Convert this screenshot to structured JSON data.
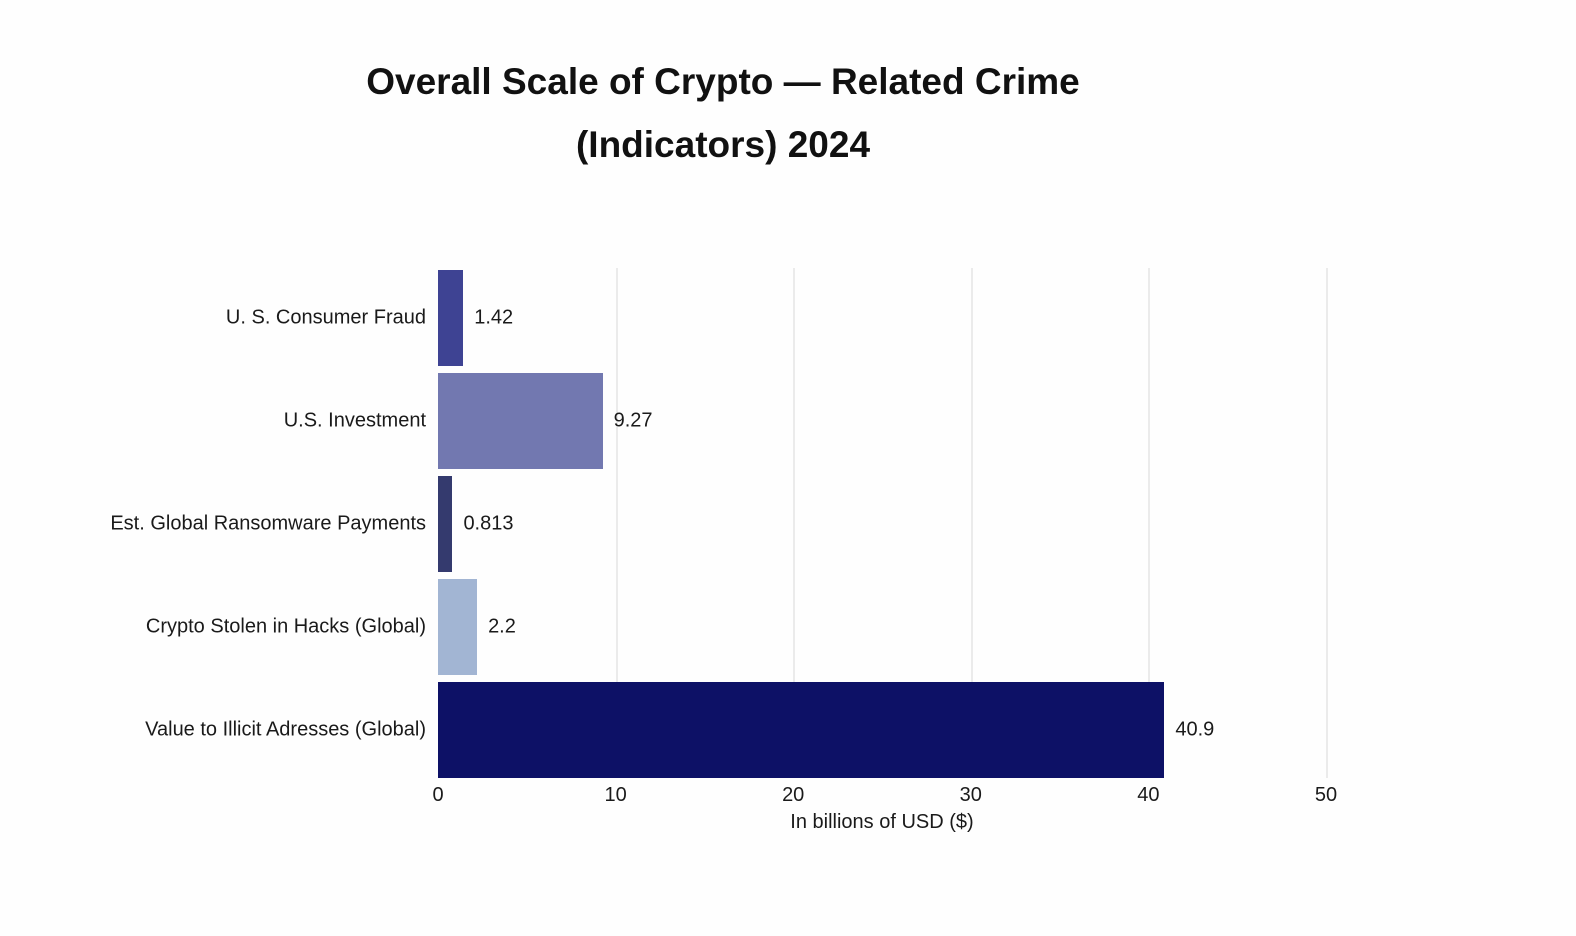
{
  "chart": {
    "title_line1": "Overall Scale of Crypto — Related Crime",
    "title_line2": "(Indicators) 2024",
    "xlabel": "In billions of USD ($)"
  },
  "chart_data": {
    "type": "bar",
    "orientation": "horizontal",
    "title": "Overall Scale of Crypto — Related Crime (Indicators) 2024",
    "xlabel": "In billions of USD ($)",
    "categories": [
      "U. S. Consumer Fraud",
      "U.S. Investment",
      "Est. Global Ransomware Payments",
      "Crypto Stolen in Hacks (Global)",
      "Value to Illicit Adresses (Global)"
    ],
    "values": [
      1.42,
      9.27,
      0.813,
      2.2,
      40.9
    ],
    "value_labels": [
      "1.42",
      "9.27",
      "0.813",
      "2.2",
      "40.9"
    ],
    "bar_colors": [
      "#3e4393",
      "#7278b0",
      "#343a6e",
      "#a2b5d3",
      "#0d1166"
    ],
    "xlim": [
      0,
      50
    ],
    "xticks": [
      0,
      10,
      20,
      30,
      40,
      50
    ],
    "grid": "vertical-light-gray",
    "legend": "none",
    "background": "#ffffff"
  },
  "colors": {
    "gridline": "#ebebeb",
    "text": "#1a1a1a",
    "title": "#111111"
  }
}
